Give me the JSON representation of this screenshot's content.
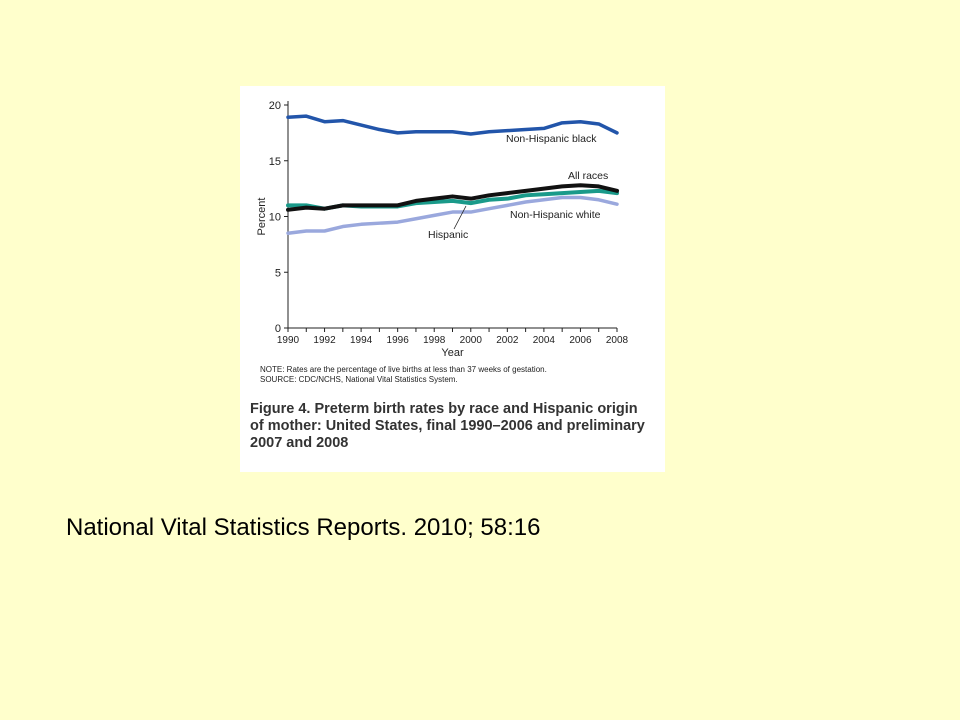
{
  "figure": {
    "note": "NOTE: Rates are the percentage of live births at less than 37 weeks of gestation.",
    "source": "SOURCE: CDC/NCHS, National Vital Statistics System.",
    "caption": "Figure 4. Preterm birth rates by race and Hispanic origin of mother: United States, final 1990–2006 and preliminary 2007 and 2008"
  },
  "citation": "National Vital Statistics Reports. 2010; 58:16",
  "chart_data": {
    "type": "line",
    "title": "Figure 4. Preterm birth rates by race and Hispanic origin of mother: United States, final 1990–2006 and preliminary 2007 and 2008",
    "xlabel": "Year",
    "ylabel": "Percent",
    "xlim": [
      1990,
      2008
    ],
    "ylim": [
      0,
      20
    ],
    "x_ticks": [
      "1990",
      "1992",
      "1994",
      "1996",
      "1998",
      "2000",
      "2002",
      "2004",
      "2006",
      "2008"
    ],
    "y_ticks": [
      "0",
      "5",
      "10",
      "15",
      "20"
    ],
    "grid": false,
    "x": [
      1990,
      1991,
      1992,
      1993,
      1994,
      1995,
      1996,
      1997,
      1998,
      1999,
      2000,
      2001,
      2002,
      2003,
      2004,
      2005,
      2006,
      2007,
      2008
    ],
    "series": [
      {
        "name": "Non-Hispanic black",
        "color": "#2255aa",
        "values": [
          18.9,
          19.0,
          18.5,
          18.6,
          18.2,
          17.8,
          17.5,
          17.6,
          17.6,
          17.6,
          17.4,
          17.6,
          17.7,
          17.8,
          17.9,
          18.4,
          18.5,
          18.3,
          17.5
        ]
      },
      {
        "name": "All races",
        "color": "#111111",
        "values": [
          10.6,
          10.8,
          10.7,
          11.0,
          11.0,
          11.0,
          11.0,
          11.4,
          11.6,
          11.8,
          11.6,
          11.9,
          12.1,
          12.3,
          12.5,
          12.7,
          12.8,
          12.7,
          12.3
        ]
      },
      {
        "name": "Hispanic",
        "color": "#1a9a8a",
        "values": [
          11.0,
          11.0,
          10.7,
          11.0,
          10.9,
          10.9,
          10.9,
          11.2,
          11.3,
          11.4,
          11.2,
          11.5,
          11.6,
          11.9,
          12.0,
          12.1,
          12.2,
          12.3,
          12.1
        ]
      },
      {
        "name": "Non-Hispanic white",
        "color": "#9aa8dd",
        "values": [
          8.5,
          8.7,
          8.7,
          9.1,
          9.3,
          9.4,
          9.5,
          9.8,
          10.1,
          10.4,
          10.4,
          10.7,
          11.0,
          11.3,
          11.5,
          11.7,
          11.7,
          11.5,
          11.1
        ]
      }
    ]
  }
}
